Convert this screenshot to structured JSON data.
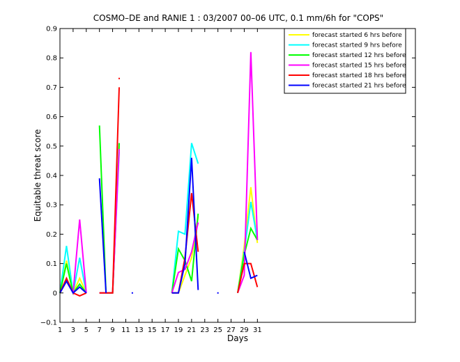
{
  "chart_data": {
    "type": "line",
    "title": "COSMO–DE and RANIE 1 : 03/2007 00–06 UTC, 0.1 mm/6h for \"COPS\"",
    "xlabel": "Days",
    "ylabel": "Equitable threat score",
    "xlim": [
      1,
      55
    ],
    "ylim": [
      -0.1,
      0.9
    ],
    "xticks": [
      1,
      3,
      5,
      7,
      9,
      11,
      13,
      15,
      17,
      19,
      21,
      23,
      25,
      27,
      29,
      31
    ],
    "yticks": [
      -0.1,
      0,
      0.1,
      0.2,
      0.3,
      0.4,
      0.5,
      0.6,
      0.7,
      0.8,
      0.9
    ],
    "ytick_labels": [
      "−0.1",
      "0",
      "0.1",
      "0.2",
      "0.3",
      "0.4",
      "0.5",
      "0.6",
      "0.7",
      "0.8",
      "0.9"
    ],
    "legend_position": "top-right",
    "grid": false,
    "series": [
      {
        "name": "forecast started 6 hrs before",
        "color": "#ffff00",
        "segments": [
          [
            [
              1,
              0.0
            ],
            [
              2,
              0.11
            ],
            [
              3,
              0.0
            ],
            [
              4,
              0.05
            ],
            [
              5,
              0.0
            ]
          ],
          [
            [
              7,
              0.0
            ],
            [
              8,
              0.0
            ],
            [
              9,
              0.0
            ],
            [
              10,
              0.5
            ]
          ],
          [
            [
              18,
              0.0
            ],
            [
              19,
              0.0
            ],
            [
              20,
              0.06
            ],
            [
              21,
              0.12
            ],
            [
              22,
              0.26
            ]
          ],
          [
            [
              28,
              0.0
            ],
            [
              29,
              0.16
            ],
            [
              30,
              0.36
            ],
            [
              31,
              0.17
            ]
          ]
        ]
      },
      {
        "name": "forecast started 9 hrs before",
        "color": "#00ffff",
        "segments": [
          [
            [
              1,
              0.0
            ],
            [
              2,
              0.16
            ],
            [
              3,
              0.0
            ],
            [
              4,
              0.12
            ],
            [
              5,
              0.0
            ]
          ],
          [
            [
              7,
              0.0
            ],
            [
              8,
              0.0
            ],
            [
              9,
              0.0
            ],
            [
              10,
              0.48
            ]
          ],
          [
            [
              18,
              0.0
            ],
            [
              19,
              0.21
            ],
            [
              20,
              0.2
            ],
            [
              21,
              0.51
            ],
            [
              22,
              0.44
            ]
          ],
          [
            [
              28,
              0.0
            ],
            [
              29,
              0.14
            ],
            [
              30,
              0.31
            ],
            [
              31,
              0.18
            ]
          ]
        ]
      },
      {
        "name": "forecast started 12 hrs before",
        "color": "#00ff00",
        "segments": [
          [
            [
              1,
              0.0
            ],
            [
              2,
              0.1
            ],
            [
              3,
              0.0
            ],
            [
              4,
              0.03
            ],
            [
              5,
              0.0
            ]
          ],
          [
            [
              7,
              0.57
            ],
            [
              8,
              0.0
            ],
            [
              9,
              0.0
            ],
            [
              10,
              0.51
            ]
          ],
          [
            [
              18,
              0.0
            ],
            [
              19,
              0.15
            ],
            [
              20,
              0.11
            ],
            [
              21,
              0.04
            ],
            [
              22,
              0.27
            ]
          ],
          [
            [
              28,
              0.0
            ],
            [
              29,
              0.13
            ],
            [
              30,
              0.22
            ],
            [
              31,
              0.18
            ]
          ]
        ]
      },
      {
        "name": "forecast started 15 hrs before",
        "color": "#ff00ff",
        "segments": [
          [
            [
              1,
              0.0
            ],
            [
              2,
              0.04
            ],
            [
              3,
              0.0
            ],
            [
              4,
              0.25
            ],
            [
              5,
              0.0
            ]
          ],
          [
            [
              7,
              0.0
            ],
            [
              8,
              0.0
            ],
            [
              9,
              0.0
            ],
            [
              10,
              0.49
            ]
          ],
          [
            [
              18,
              0.0
            ],
            [
              19,
              0.07
            ],
            [
              20,
              0.08
            ],
            [
              21,
              0.14
            ],
            [
              22,
              0.24
            ]
          ],
          [
            [
              28,
              0.0
            ],
            [
              29,
              0.06
            ],
            [
              30,
              0.82
            ],
            [
              31,
              0.18
            ]
          ]
        ]
      },
      {
        "name": "forecast started 18 hrs before",
        "color": "#ff0000",
        "segments": [
          [
            [
              1,
              0.0
            ],
            [
              2,
              0.05
            ],
            [
              3,
              0.0
            ],
            [
              4,
              -0.01
            ],
            [
              5,
              0.0
            ]
          ],
          [
            [
              7,
              0.0
            ],
            [
              8,
              0.0
            ],
            [
              9,
              0.0
            ],
            [
              10,
              0.7
            ]
          ],
          [
            [
              18,
              0.0
            ],
            [
              19,
              0.0
            ],
            [
              20,
              0.12
            ],
            [
              21,
              0.34
            ],
            [
              22,
              0.14
            ]
          ],
          [
            [
              28,
              0.0
            ],
            [
              29,
              0.1
            ],
            [
              30,
              0.1
            ],
            [
              31,
              0.02
            ]
          ]
        ]
      },
      {
        "name": "forecast started 21 hrs before",
        "color": "#0000ff",
        "segments": [
          [
            [
              1,
              0.0
            ],
            [
              2,
              0.04
            ],
            [
              3,
              0.0
            ],
            [
              4,
              0.02
            ],
            [
              5,
              0.0
            ]
          ],
          [
            [
              7,
              0.39
            ],
            [
              8,
              0.0
            ]
          ],
          [
            [
              18,
              0.0
            ],
            [
              19,
              0.0
            ],
            [
              20,
              0.1
            ],
            [
              21,
              0.46
            ],
            [
              22,
              0.01
            ]
          ],
          [
            [
              29,
              0.14
            ],
            [
              30,
              0.05
            ],
            [
              31,
              0.06
            ]
          ]
        ]
      }
    ],
    "isolated_markers": [
      {
        "x": 10,
        "y": 0.73,
        "color": "#ff0000"
      },
      {
        "x": 12,
        "y": 0.0,
        "color": "#0000ff"
      },
      {
        "x": 25,
        "y": 0.0,
        "color": "#0000ff"
      }
    ]
  }
}
